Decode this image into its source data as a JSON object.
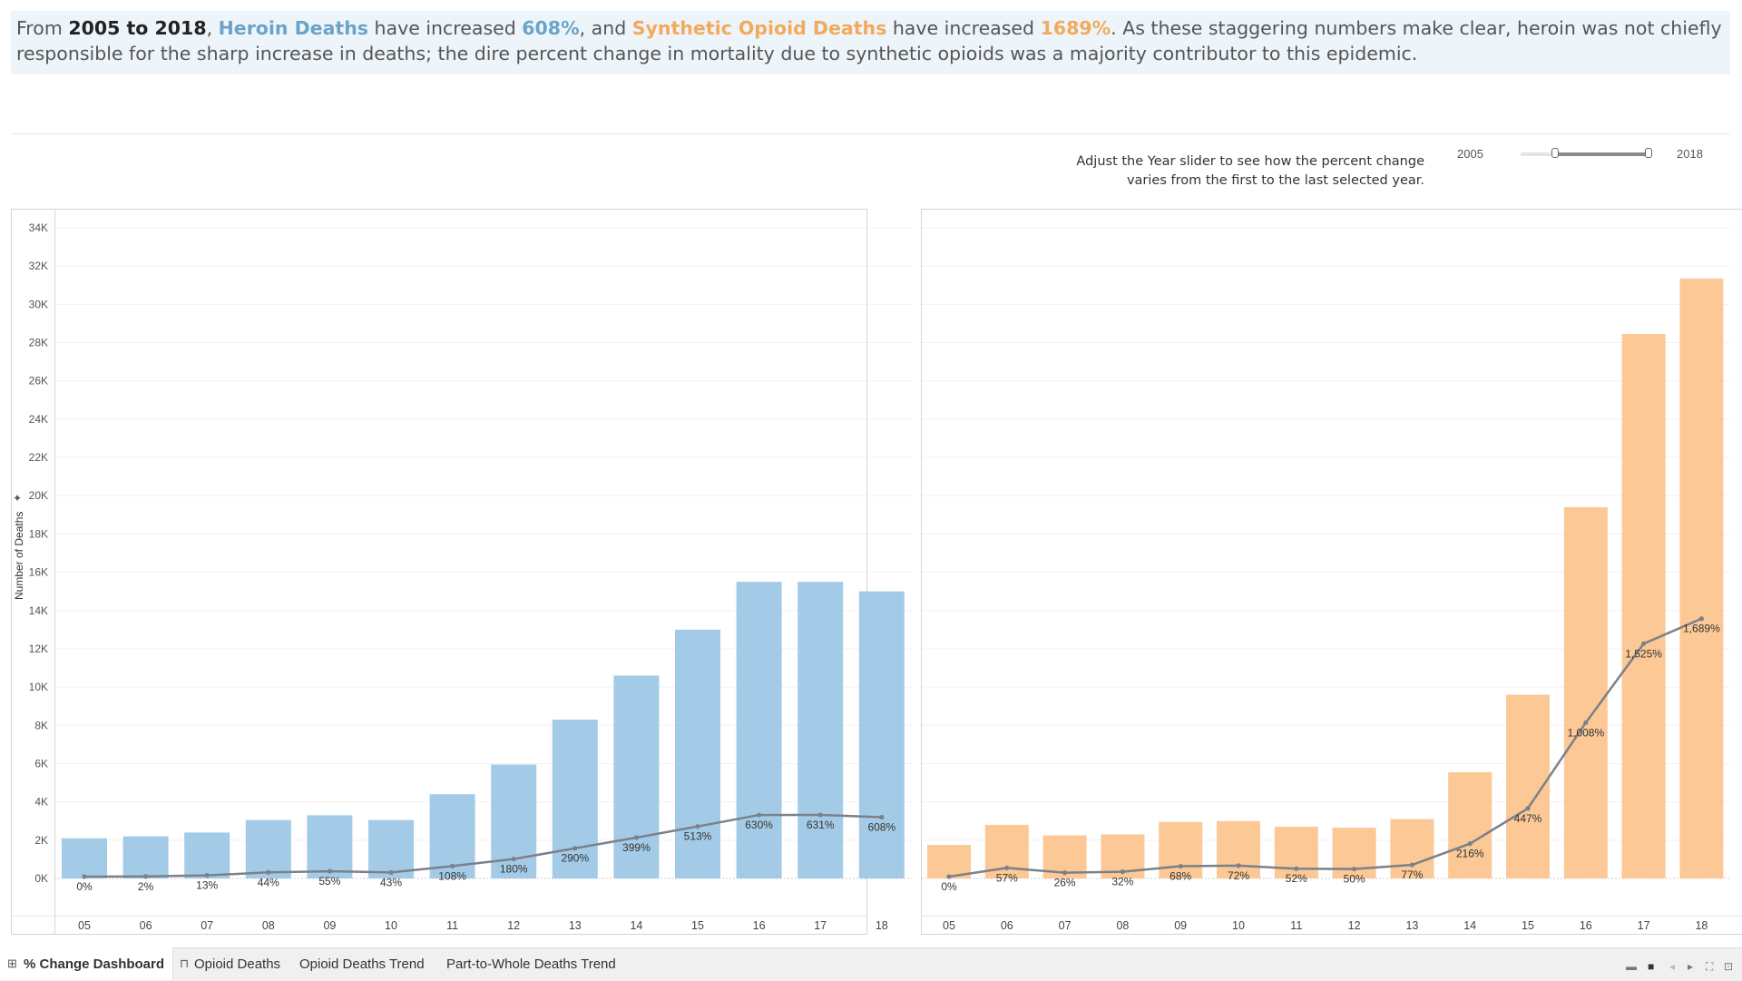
{
  "headline": {
    "p1": "From ",
    "range": "2005 to 2018",
    "p2": ", ",
    "heroin": "Heroin Deaths",
    "p3": " have increased ",
    "heroin_pct": "608%",
    "p4": ", and ",
    "synthetic": "Synthetic Opioid Deaths",
    "p5": " have increased ",
    "synthetic_pct": "1689%",
    "p6": ".  As these staggering numbers make clear, heroin was not chiefly responsible for the sharp increase in deaths; the dire percent change in mortality due to synthetic opioids was a majority contributor to this epidemic."
  },
  "slider": {
    "note_line1": "Adjust the Year slider to see how the percent change",
    "note_line2": "varies from the first to the last selected year.",
    "start": "2005",
    "end": "2018"
  },
  "axis": {
    "ylabel": "Number of Deaths",
    "yticks": [
      "0K",
      "2K",
      "4K",
      "6K",
      "8K",
      "10K",
      "12K",
      "14K",
      "16K",
      "18K",
      "20K",
      "22K",
      "24K",
      "26K",
      "28K",
      "30K",
      "32K",
      "34K"
    ]
  },
  "colors": {
    "heroin": "#a3cbe7",
    "synthetic": "#fcc895",
    "line": "#7b8189"
  },
  "chart_data": [
    {
      "type": "bar",
      "categories": [
        "05",
        "06",
        "07",
        "08",
        "09",
        "10",
        "11",
        "12",
        "13",
        "14",
        "15",
        "16",
        "17",
        "18"
      ],
      "ylim": [
        0,
        34000
      ],
      "bar_values": [
        2100,
        2200,
        2400,
        3050,
        3300,
        3050,
        4400,
        5950,
        8300,
        10600,
        13000,
        15500,
        15500,
        15000
      ],
      "line_values": [
        0,
        2,
        13,
        44,
        55,
        43,
        108,
        180,
        290,
        399,
        513,
        630,
        631,
        608
      ],
      "line_labels": [
        "0%",
        "2%",
        "13%",
        "44%",
        "55%",
        "43%",
        "108%",
        "180%",
        "290%",
        "399%",
        "513%",
        "630%",
        "631%",
        "608%"
      ],
      "line_scale_max": 6650
    },
    {
      "type": "bar",
      "categories": [
        "05",
        "06",
        "07",
        "08",
        "09",
        "10",
        "11",
        "12",
        "13",
        "14",
        "15",
        "16",
        "17",
        "18"
      ],
      "ylim": [
        0,
        34000
      ],
      "bar_values": [
        1750,
        2800,
        2250,
        2300,
        2950,
        3000,
        2700,
        2650,
        3100,
        5550,
        9600,
        19400,
        28450,
        31350
      ],
      "line_values": [
        0,
        57,
        26,
        32,
        68,
        72,
        52,
        50,
        77,
        216,
        447,
        1008,
        1525,
        1689
      ],
      "line_labels": [
        "0%",
        "57%",
        "26%",
        "32%",
        "68%",
        "72%",
        "52%",
        "50%",
        "77%",
        "216%",
        "447%",
        "1,008%",
        "1,525%",
        "1,689%"
      ],
      "line_scale_max": 4260
    }
  ],
  "tabs": [
    "% Change Dashboard",
    "Opioid Deaths",
    "Opioid Deaths Trend",
    "Part-to-Whole Deaths Trend"
  ]
}
